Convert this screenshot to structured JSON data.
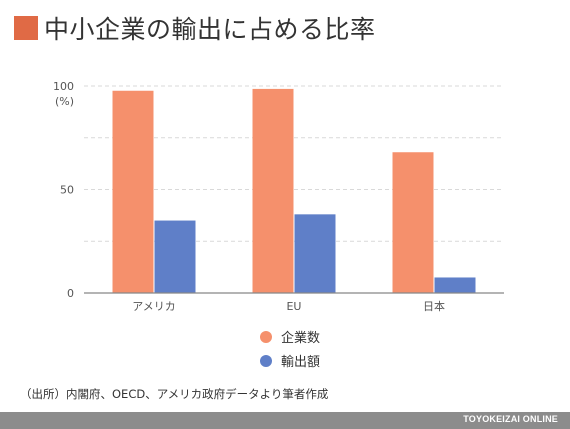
{
  "title": "中小企業の輸出に占める比率",
  "colors": {
    "title_marker": "#e06a45",
    "series_companies": "#f5906c",
    "series_exports": "#5f7fc8",
    "footer_bg": "#8c8c8c",
    "gridline": "#d9d9d9",
    "baseline": "#888888"
  },
  "chart_data": {
    "type": "bar",
    "categories": [
      "アメリカ",
      "EU",
      "日本"
    ],
    "series": [
      {
        "name": "企業数",
        "values": [
          97.7,
          98.6,
          68.0
        ]
      },
      {
        "name": "輸出額",
        "values": [
          35.0,
          38.0,
          7.5
        ]
      }
    ],
    "ylabel": "(%)",
    "ylim": [
      0,
      100
    ],
    "yticks": [
      0,
      50,
      100
    ],
    "minor_gridlines": [
      25,
      75
    ],
    "legend_position": "bottom"
  },
  "source": "（出所）内閣府、OECD、アメリカ政府データより筆者作成",
  "footer": "TOYOKEIZAI ONLINE"
}
